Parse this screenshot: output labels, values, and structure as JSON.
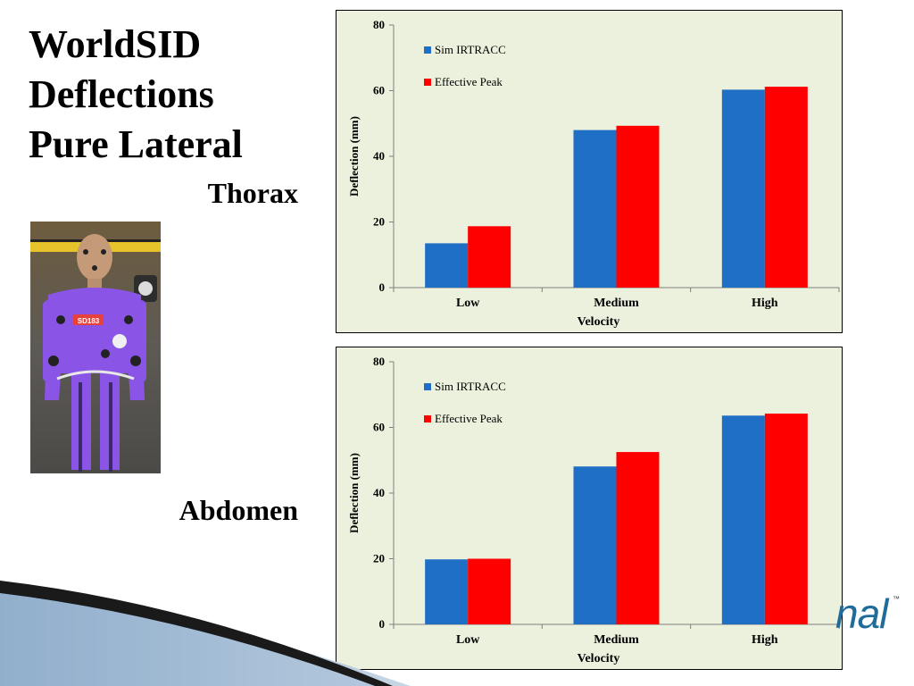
{
  "slide": {
    "title_lines": [
      "WorldSID",
      "Deflections",
      "Pure Lateral"
    ],
    "thorax_label": "Thorax",
    "abdomen_label": "Abdomen",
    "photo_tag": "SD183",
    "logo_text": "nal",
    "logo_tm": "™"
  },
  "colors": {
    "sim_irtracc": "#1f6fc6",
    "effective_peak": "#ff0000",
    "chart_background": "#ebf1dd"
  },
  "chart_data": [
    {
      "type": "bar",
      "categories": [
        "Low",
        "Medium",
        "High"
      ],
      "series": [
        {
          "name": "Sim IRTRACC",
          "values": [
            13.5,
            48,
            60.3
          ]
        },
        {
          "name": "Effective Peak",
          "values": [
            18.7,
            49.3,
            61.2
          ]
        }
      ],
      "xlabel": "Velocity",
      "ylabel": "Deflection (mm)",
      "ylim": [
        0,
        80
      ],
      "yticks": [
        "0",
        "20",
        "40",
        "60",
        "80"
      ],
      "grid": false,
      "legend": "top-left"
    },
    {
      "type": "bar",
      "categories": [
        "Low",
        "Medium",
        "High"
      ],
      "series": [
        {
          "name": "Sim IRTRACC",
          "values": [
            19.8,
            48.1,
            63.6
          ]
        },
        {
          "name": "Effective Peak",
          "values": [
            20,
            52.5,
            64.2
          ]
        }
      ],
      "xlabel": "Velocity",
      "ylabel": "Deflection (mm)",
      "ylim": [
        0,
        80
      ],
      "yticks": [
        "0",
        "20",
        "40",
        "60",
        "80"
      ],
      "grid": false,
      "legend": "top-left"
    }
  ]
}
